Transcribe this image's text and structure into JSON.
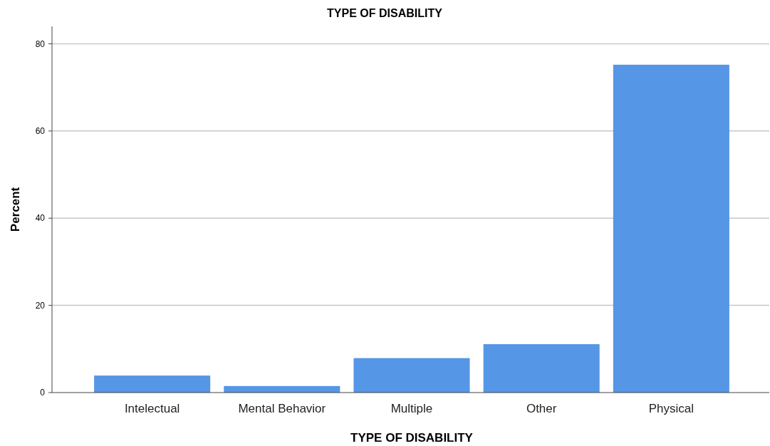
{
  "chart_data": {
    "type": "bar",
    "title": "TYPE OF DISABILITY",
    "xlabel": "TYPE OF DISABILITY",
    "ylabel": "Percent",
    "categories": [
      "Intelectual",
      "Mental Behavior",
      "Multiple",
      "Other",
      "Physical"
    ],
    "values": [
      3.9,
      1.5,
      7.9,
      11.1,
      75.2
    ],
    "color": "#5596e6",
    "ylim": [
      0,
      84
    ],
    "yticks": [
      0,
      20,
      40,
      60,
      80
    ],
    "grid": "y"
  }
}
